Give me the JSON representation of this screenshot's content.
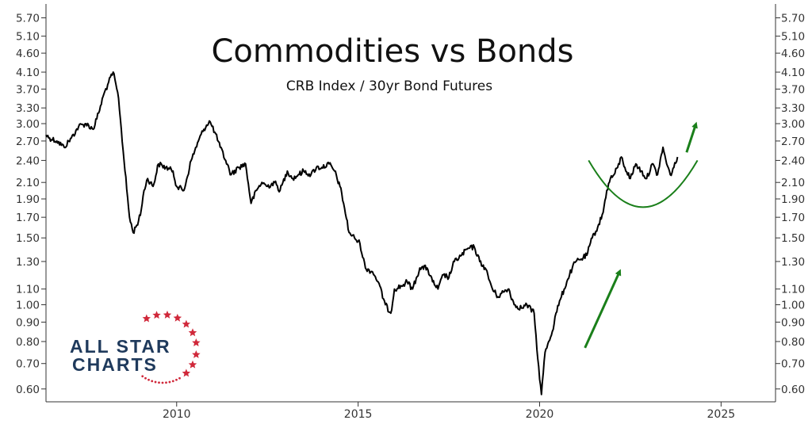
{
  "chart_data": {
    "type": "line",
    "title": "Commodities vs Bonds",
    "subtitle": "CRB Index / 30yr Bond Futures",
    "xlabel": "",
    "ylabel": "",
    "y_scale": "log",
    "ylim": [
      0.555,
      6.2
    ],
    "xlim": [
      2006.4,
      2026.5
    ],
    "grid": false,
    "y_ticks": [
      {
        "value": 0.6,
        "label": "0.60"
      },
      {
        "value": 0.7,
        "label": "0.70"
      },
      {
        "value": 0.8,
        "label": "0.80"
      },
      {
        "value": 0.9,
        "label": "0.90"
      },
      {
        "value": 1.0,
        "label": "1.00"
      },
      {
        "value": 1.1,
        "label": "1.10"
      },
      {
        "value": 1.3,
        "label": "1.30"
      },
      {
        "value": 1.5,
        "label": "1.50"
      },
      {
        "value": 1.7,
        "label": "1.70"
      },
      {
        "value": 1.9,
        "label": "1.90"
      },
      {
        "value": 2.1,
        "label": "2.10"
      },
      {
        "value": 2.4,
        "label": "2.40"
      },
      {
        "value": 2.7,
        "label": "2.70"
      },
      {
        "value": 3.0,
        "label": "3.00"
      },
      {
        "value": 3.3,
        "label": "3.30"
      },
      {
        "value": 3.7,
        "label": "3.70"
      },
      {
        "value": 4.1,
        "label": "4.10"
      },
      {
        "value": 4.6,
        "label": "4.60"
      },
      {
        "value": 5.1,
        "label": "5.10"
      },
      {
        "value": 5.7,
        "label": "5.70"
      }
    ],
    "x_ticks": [
      {
        "value": 2010,
        "label": "2010"
      },
      {
        "value": 2015,
        "label": "2015"
      },
      {
        "value": 2020,
        "label": "2020"
      },
      {
        "value": 2025,
        "label": "2025"
      }
    ],
    "series": [
      {
        "color": "#000000",
        "x": [
          2006.4,
          2006.5,
          2006.7,
          2006.9,
          2007.1,
          2007.3,
          2007.5,
          2007.7,
          2007.85,
          2008.0,
          2008.1,
          2008.25,
          2008.4,
          2008.55,
          2008.7,
          2008.8,
          2008.9,
          2009.0,
          2009.1,
          2009.2,
          2009.35,
          2009.5,
          2009.7,
          2009.9,
          2010.0,
          2010.2,
          2010.4,
          2010.6,
          2010.75,
          2010.9,
          2011.05,
          2011.2,
          2011.35,
          2011.5,
          2011.7,
          2011.9,
          2012.05,
          2012.2,
          2012.35,
          2012.5,
          2012.7,
          2012.85,
          2013.05,
          2013.2,
          2013.35,
          2013.5,
          2013.7,
          2013.85,
          2014.0,
          2014.2,
          2014.35,
          2014.5,
          2014.6,
          2014.75,
          2014.9,
          2015.05,
          2015.2,
          2015.4,
          2015.55,
          2015.75,
          2015.9,
          2016.0,
          2016.2,
          2016.35,
          2016.5,
          2016.7,
          2016.9,
          2017.05,
          2017.2,
          2017.35,
          2017.5,
          2017.65,
          2017.85,
          2018.0,
          2018.2,
          2018.35,
          2018.5,
          2018.7,
          2018.85,
          2019.0,
          2019.15,
          2019.3,
          2019.5,
          2019.65,
          2019.85,
          2019.95,
          2020.05,
          2020.15,
          2020.25,
          2020.35,
          2020.45,
          2020.6,
          2020.75,
          2020.9,
          2021.0,
          2021.15,
          2021.3,
          2021.45,
          2021.6,
          2021.75,
          2021.85,
          2021.95,
          2022.05,
          2022.15,
          2022.25,
          2022.35,
          2022.5,
          2022.65,
          2022.8,
          2022.95,
          2023.1,
          2023.25,
          2023.4,
          2023.5,
          2023.6,
          2023.7,
          2023.8
        ],
        "y": [
          2.8,
          2.75,
          2.7,
          2.6,
          2.75,
          2.95,
          3.0,
          2.9,
          3.2,
          3.6,
          3.8,
          4.1,
          3.5,
          2.4,
          1.7,
          1.55,
          1.62,
          1.72,
          2.0,
          2.15,
          2.05,
          2.35,
          2.3,
          2.25,
          2.05,
          2.0,
          2.4,
          2.7,
          2.9,
          3.05,
          2.85,
          2.6,
          2.4,
          2.2,
          2.3,
          2.35,
          1.85,
          2.0,
          2.1,
          2.05,
          2.1,
          2.0,
          2.25,
          2.15,
          2.2,
          2.25,
          2.2,
          2.3,
          2.3,
          2.35,
          2.25,
          2.05,
          1.85,
          1.55,
          1.5,
          1.45,
          1.25,
          1.22,
          1.15,
          1.0,
          0.95,
          1.1,
          1.12,
          1.15,
          1.1,
          1.25,
          1.25,
          1.15,
          1.1,
          1.2,
          1.18,
          1.3,
          1.35,
          1.4,
          1.42,
          1.3,
          1.25,
          1.1,
          1.05,
          1.08,
          1.1,
          1.0,
          0.98,
          1.0,
          0.95,
          0.72,
          0.58,
          0.75,
          0.8,
          0.85,
          0.95,
          1.05,
          1.15,
          1.25,
          1.3,
          1.32,
          1.35,
          1.5,
          1.6,
          1.75,
          2.0,
          2.15,
          2.2,
          2.3,
          2.45,
          2.3,
          2.15,
          2.35,
          2.25,
          2.15,
          2.35,
          2.2,
          2.6,
          2.35,
          2.2,
          2.3,
          2.45
        ]
      }
    ],
    "annotations": [
      {
        "type": "arrow",
        "from": [
          2021.25,
          0.77
        ],
        "to": [
          2022.2,
          1.22
        ],
        "color": "#1a7f1a"
      },
      {
        "type": "arc",
        "x0": 2021.35,
        "x1": 2024.35,
        "y_top": 2.4,
        "y_bottom": 1.82,
        "color": "#1a7f1a"
      },
      {
        "type": "arrow",
        "from": [
          2024.05,
          2.52
        ],
        "to": [
          2024.3,
          2.98
        ],
        "color": "#1a7f1a"
      }
    ]
  },
  "logo": {
    "line1": "ALL STAR",
    "line2": "CHARTS",
    "star_color": "#d0283a"
  }
}
